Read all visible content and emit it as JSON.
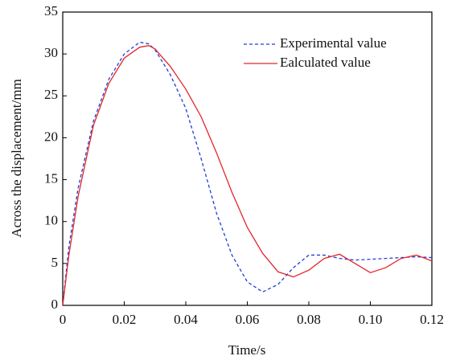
{
  "chart_data": {
    "type": "line",
    "x_label": "Time/s",
    "y_label": "Across the displacement/mm",
    "xlim": [
      0,
      0.12
    ],
    "xticks": [
      0,
      0.02,
      0.04,
      0.06,
      0.08,
      {
        "value": 0.1,
        "label": "0.10"
      },
      0.12
    ],
    "ylim": [
      0,
      35
    ],
    "yticks": [
      0,
      5,
      10,
      15,
      20,
      25,
      30,
      35
    ],
    "legend": "upper right",
    "x": [
      0,
      0.002,
      0.005,
      0.01,
      0.015,
      0.02,
      0.025,
      0.028,
      0.03,
      0.035,
      0.04,
      0.045,
      0.05,
      0.055,
      0.06,
      0.065,
      0.07,
      0.075,
      0.08,
      0.085,
      0.09,
      0.095,
      0.1,
      0.105,
      0.11,
      0.115,
      0.12
    ],
    "series": [
      {
        "name": "Experimental value",
        "color": "#1f3fd6",
        "dashed": true,
        "values": [
          0,
          7,
          14,
          22,
          27,
          30,
          31.4,
          31.2,
          30.5,
          27.5,
          23.5,
          17.5,
          11,
          6,
          2.8,
          1.6,
          2.5,
          4.5,
          6.0,
          6.0,
          5.6,
          5.4,
          5.5,
          5.6,
          5.7,
          5.8,
          5.7
        ]
      },
      {
        "name": "Ealculated value",
        "color": "#e3262b",
        "dashed": false,
        "values": [
          0,
          6,
          13,
          21.5,
          26.5,
          29.5,
          30.8,
          31,
          30.6,
          28.5,
          25.8,
          22.5,
          18.2,
          13.5,
          9.3,
          6.2,
          4.0,
          3.4,
          4.2,
          5.6,
          6.1,
          5.0,
          3.9,
          4.5,
          5.6,
          6.0,
          5.3
        ]
      }
    ]
  }
}
